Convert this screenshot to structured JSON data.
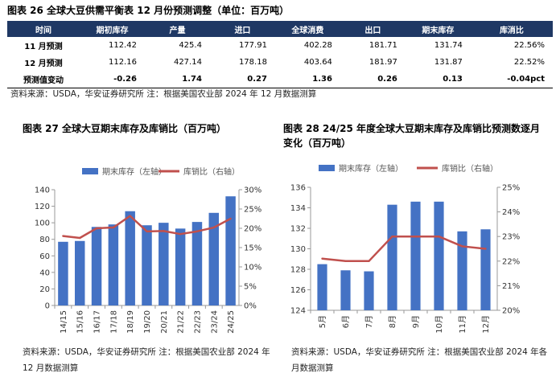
{
  "fig26": {
    "title": "图表 26 全球大豆供需平衡表 12 月份预测调整（单位：百万吨）",
    "headers": [
      "时间",
      "期初库存",
      "产量",
      "进口",
      "全球消费",
      "出口",
      "期末库存",
      "库消比"
    ],
    "rows": [
      [
        "11 月预测",
        "112.42",
        "425.4",
        "177.91",
        "402.28",
        "181.71",
        "131.74",
        "22.56%"
      ],
      [
        "12 月预测",
        "112.16",
        "427.14",
        "178.18",
        "403.64",
        "181.97",
        "131.87",
        "22.52%"
      ],
      [
        "预测值变动",
        "-0.26",
        "1.74",
        "0.27",
        "1.36",
        "0.26",
        "0.13",
        "-0.04pct"
      ]
    ],
    "source": "资料来源：USDA，华安证券研究所   注：根据美国农业部 2024 年 12 月数据测算"
  },
  "fig27": {
    "title": "图表 27 全球大豆期末库存及库销比（百万吨）",
    "source": "资料来源：USDA，华安证券研究所 注：根据美国农业部 2024 年 12 月数据测算"
  },
  "fig28": {
    "title": "图表 28 24/25 年度全球大豆期末库存及库销比预测数逐月变化（百万吨）",
    "source": "资料来源：USDA，华安证券研究所 注：根据美国农业部 2024 年各月数据测算"
  },
  "colors": {
    "bar": "#4472c4",
    "line": "#c0504d",
    "header": "#1f3864"
  },
  "chart_data": [
    {
      "type": "bar+line",
      "title": "图表 27 全球大豆期末库存及库销比（百万吨）",
      "categories": [
        "14/15",
        "15/16",
        "16/17",
        "17/18",
        "18/19",
        "19/20",
        "20/21",
        "21/22",
        "22/23",
        "23/24",
        "24/25"
      ],
      "series": [
        {
          "name": "期末库存（左轴）",
          "type": "bar",
          "axis": "left",
          "values": [
            77,
            78,
            95,
            98,
            114,
            97,
            100,
            93,
            101,
            112,
            132
          ]
        },
        {
          "name": "库销比（右轴）",
          "type": "line",
          "axis": "right",
          "values": [
            18.0,
            17.5,
            20.0,
            20.2,
            23.2,
            19.2,
            19.3,
            18.5,
            19.2,
            20.2,
            22.5
          ]
        }
      ],
      "ylim_left": [
        0,
        140
      ],
      "yticks_left": [
        0,
        20,
        40,
        60,
        80,
        100,
        120,
        140
      ],
      "ylim_right": [
        0,
        30
      ],
      "yticks_right": [
        "0%",
        "5%",
        "10%",
        "15%",
        "20%",
        "25%",
        "30%"
      ]
    },
    {
      "type": "bar+line",
      "title": "图表 28 24/25 年度全球大豆期末库存及库销比预测数逐月变化（百万吨）",
      "categories": [
        "5月",
        "6月",
        "7月",
        "8月",
        "9月",
        "10月",
        "11月",
        "12月"
      ],
      "series": [
        {
          "name": "期末库存（左轴）",
          "type": "bar",
          "axis": "left",
          "values": [
            128.5,
            127.9,
            127.8,
            134.3,
            134.6,
            134.6,
            131.7,
            131.9
          ]
        },
        {
          "name": "库销比（右轴）",
          "type": "line",
          "axis": "right",
          "values": [
            22.1,
            22.0,
            22.0,
            23.0,
            23.0,
            23.0,
            22.6,
            22.5
          ]
        }
      ],
      "ylim_left": [
        124,
        136
      ],
      "yticks_left": [
        124,
        126,
        128,
        130,
        132,
        134,
        136
      ],
      "ylim_right": [
        20,
        25
      ],
      "yticks_right": [
        "20%",
        "21%",
        "22%",
        "23%",
        "24%",
        "25%"
      ]
    }
  ]
}
